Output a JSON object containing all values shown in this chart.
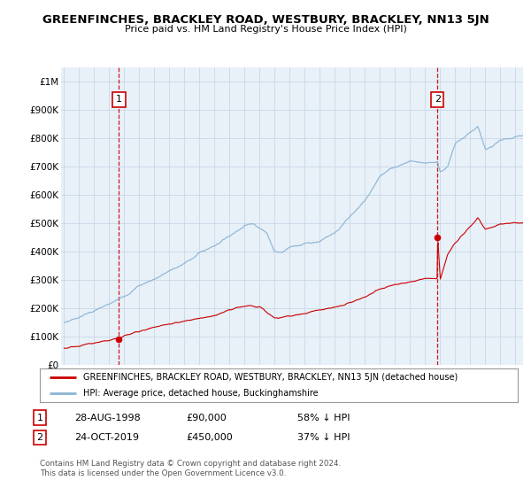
{
  "title": "GREENFINCHES, BRACKLEY ROAD, WESTBURY, BRACKLEY, NN13 5JN",
  "subtitle": "Price paid vs. HM Land Registry's House Price Index (HPI)",
  "legend_line1": "GREENFINCHES, BRACKLEY ROAD, WESTBURY, BRACKLEY, NN13 5JN (detached house)",
  "legend_line2": "HPI: Average price, detached house, Buckinghamshire",
  "point1_label": "1",
  "point1_date": "28-AUG-1998",
  "point1_price": "£90,000",
  "point1_hpi": "58% ↓ HPI",
  "point1_year": 1998.65,
  "point1_value": 90000,
  "point2_label": "2",
  "point2_date": "24-OCT-2019",
  "point2_price": "£450,000",
  "point2_hpi": "37% ↓ HPI",
  "point2_year": 2019.81,
  "point2_value": 450000,
  "hpi_color": "#8ab4d4",
  "price_color": "#cc0000",
  "plot_bg": "#e8f0f8",
  "grid_color": "#c8d8e8",
  "ylim": [
    0,
    1050000
  ],
  "xlim_start": 1994.8,
  "xlim_end": 2025.5,
  "footnote": "Contains HM Land Registry data © Crown copyright and database right 2024.\nThis data is licensed under the Open Government Licence v3.0."
}
